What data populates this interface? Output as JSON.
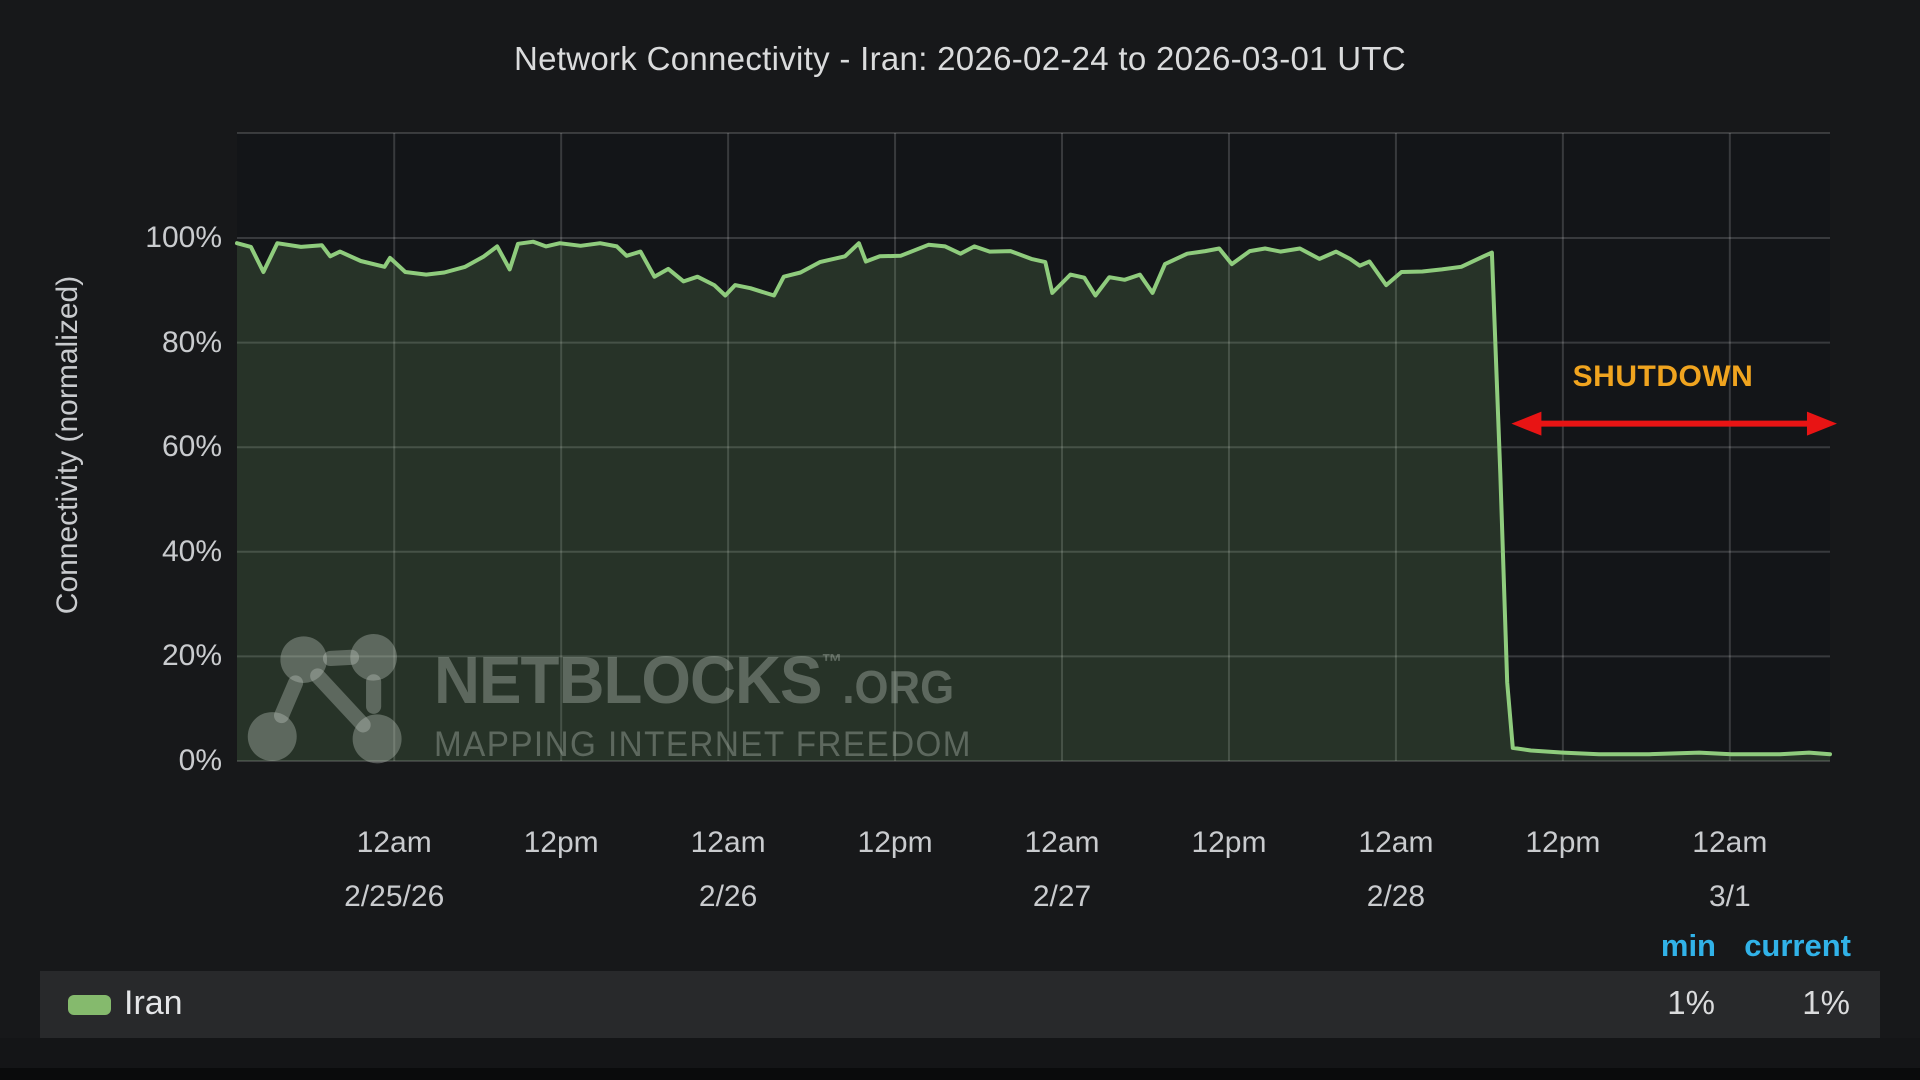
{
  "title": "Network Connectivity - Iran: 2026-02-24 to 2026-03-01 UTC",
  "ylabel": "Connectivity (normalized)",
  "annotation": {
    "label": "SHUTDOWN"
  },
  "stats_header": {
    "min": "min",
    "current": "current"
  },
  "legend": {
    "name": "Iran",
    "min_value": "1%",
    "current_value": "1%"
  },
  "watermark": {
    "brand": "NETBLOCKS",
    "tm": "™",
    "suffix": ".ORG",
    "tagline": "MAPPING INTERNET FREEDOM"
  },
  "colors": {
    "page_bg": "#17181a",
    "plot_bg": "#131518",
    "gridline": "rgba(255,255,255,0.16)",
    "line": "#8fcc7d",
    "area_fill": "rgba(143,204,125,0.17)",
    "swatch": "#85ba6d",
    "title_text": "#dadbdc",
    "axis_text": "#c9cbce",
    "shutdown_text": "#f0a41f",
    "arrow": "#e81414",
    "stat_header": "#31b2e8",
    "value_text": "#dadbdc",
    "legend_text": "#e4e5e7",
    "legend_row_bg": "#28292b",
    "watermark": "rgba(200,209,200,0.34)",
    "footer_bg": "#141517",
    "footer_dark": "#0a0b0c"
  },
  "chart_data": {
    "type": "area",
    "title": "Network Connectivity - Iran: 2026-02-24 to 2026-03-01 UTC",
    "xlabel": "",
    "ylabel": "Connectivity (normalized)",
    "x_unit": "hours since 2026-02-24 00:00 UTC",
    "x_range": [
      12.7,
      127.2
    ],
    "y_range": [
      0,
      120
    ],
    "grid": true,
    "legend_position": "bottom",
    "yticks": [
      {
        "pct": 0,
        "label": "0%"
      },
      {
        "pct": 20,
        "label": "20%"
      },
      {
        "pct": 40,
        "label": "40%"
      },
      {
        "pct": 60,
        "label": "60%"
      },
      {
        "pct": 80,
        "label": "80%"
      },
      {
        "pct": 100,
        "label": "100%"
      }
    ],
    "xticks": [
      {
        "h": 24,
        "time": "12am",
        "date": "2/25/26"
      },
      {
        "h": 36,
        "time": "12pm",
        "date": ""
      },
      {
        "h": 48,
        "time": "12am",
        "date": "2/26"
      },
      {
        "h": 60,
        "time": "12pm",
        "date": ""
      },
      {
        "h": 72,
        "time": "12am",
        "date": "2/27"
      },
      {
        "h": 84,
        "time": "12pm",
        "date": ""
      },
      {
        "h": 96,
        "time": "12am",
        "date": "2/28"
      },
      {
        "h": 108,
        "time": "12pm",
        "date": ""
      },
      {
        "h": 120,
        "time": "12am",
        "date": "3/1"
      }
    ],
    "annotation": {
      "text": "SHUTDOWN",
      "arrow": {
        "from_h": 104.3,
        "to_h": 127.7,
        "at_pct": 64.5
      }
    },
    "series": [
      {
        "name": "Iran",
        "color": "#8fcc7d",
        "min": "1%",
        "current": "1%",
        "points": [
          [
            12.7,
            99
          ],
          [
            13.7,
            98.3
          ],
          [
            14.6,
            93.5
          ],
          [
            15.6,
            99
          ],
          [
            17.3,
            98.3
          ],
          [
            18.8,
            98.6
          ],
          [
            19.4,
            96.5
          ],
          [
            20.1,
            97.4
          ],
          [
            21.6,
            95.6
          ],
          [
            23.3,
            94.5
          ],
          [
            23.7,
            96.2
          ],
          [
            24.8,
            93.5
          ],
          [
            26.3,
            93
          ],
          [
            27.6,
            93.4
          ],
          [
            29.1,
            94.5
          ],
          [
            30.4,
            96.4
          ],
          [
            31.4,
            98.4
          ],
          [
            32.3,
            94
          ],
          [
            32.9,
            98.9
          ],
          [
            34,
            99.3
          ],
          [
            34.9,
            98.4
          ],
          [
            35.9,
            99
          ],
          [
            37.4,
            98.5
          ],
          [
            38.8,
            99
          ],
          [
            40,
            98.4
          ],
          [
            40.7,
            96.6
          ],
          [
            41.7,
            97.4
          ],
          [
            42.7,
            92.6
          ],
          [
            43.7,
            94.1
          ],
          [
            44.8,
            91.7
          ],
          [
            45.8,
            92.6
          ],
          [
            47,
            91
          ],
          [
            47.8,
            89
          ],
          [
            48.5,
            91
          ],
          [
            49.6,
            90.4
          ],
          [
            51.3,
            89
          ],
          [
            52,
            92.6
          ],
          [
            53.2,
            93.4
          ],
          [
            54.6,
            95.4
          ],
          [
            56.4,
            96.5
          ],
          [
            57.4,
            99
          ],
          [
            57.9,
            95.5
          ],
          [
            58.9,
            96.5
          ],
          [
            60.4,
            96.6
          ],
          [
            62.4,
            98.7
          ],
          [
            63.6,
            98.4
          ],
          [
            64.7,
            97
          ],
          [
            65.7,
            98.4
          ],
          [
            66.8,
            97.4
          ],
          [
            68.3,
            97.5
          ],
          [
            69.8,
            96
          ],
          [
            70.8,
            95.4
          ],
          [
            71.3,
            89.5
          ],
          [
            72.6,
            93
          ],
          [
            73.6,
            92.4
          ],
          [
            74.4,
            89
          ],
          [
            75.4,
            92.5
          ],
          [
            76.5,
            92
          ],
          [
            77.6,
            93
          ],
          [
            78.5,
            89.5
          ],
          [
            79.4,
            95
          ],
          [
            81,
            97
          ],
          [
            82.3,
            97.5
          ],
          [
            83.3,
            98
          ],
          [
            84.2,
            95
          ],
          [
            85.5,
            97.5
          ],
          [
            86.6,
            98
          ],
          [
            87.7,
            97.4
          ],
          [
            89.1,
            98
          ],
          [
            90.5,
            96
          ],
          [
            91.7,
            97.4
          ],
          [
            92.7,
            96
          ],
          [
            93.4,
            94.7
          ],
          [
            94.1,
            95.5
          ],
          [
            95.3,
            91
          ],
          [
            96.4,
            93.5
          ],
          [
            97.9,
            93.6
          ],
          [
            99.3,
            94
          ],
          [
            100.7,
            94.5
          ],
          [
            102.3,
            96.5
          ],
          [
            102.9,
            97.2
          ],
          [
            103.5,
            55
          ],
          [
            104,
            15
          ],
          [
            104.4,
            2.5
          ],
          [
            105.7,
            2
          ],
          [
            108,
            1.6
          ],
          [
            110.6,
            1.3
          ],
          [
            114.2,
            1.3
          ],
          [
            117.8,
            1.6
          ],
          [
            120.1,
            1.3
          ],
          [
            123.6,
            1.3
          ],
          [
            125.7,
            1.6
          ],
          [
            127.2,
            1.3
          ]
        ]
      }
    ]
  }
}
